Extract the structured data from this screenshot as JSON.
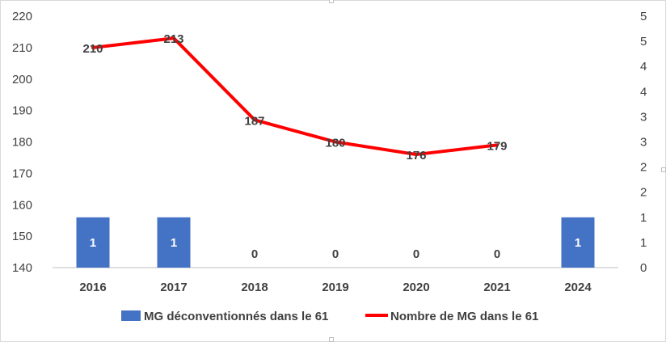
{
  "chart_data": {
    "type": "bar+line",
    "title": "",
    "categories": [
      "2016",
      "2017",
      "2018",
      "2019",
      "2020",
      "2021",
      "2024"
    ],
    "series": [
      {
        "name": "MG déconventionnés dans le 61",
        "type": "bar",
        "axis": "right",
        "color": "#4472C4",
        "values": [
          1,
          1,
          0,
          0,
          0,
          0,
          1
        ],
        "labels": [
          "1",
          "1",
          "0",
          "0",
          "0",
          "0",
          "1"
        ]
      },
      {
        "name": "Nombre de MG dans le 61",
        "type": "line",
        "axis": "left",
        "color": "#FF0000",
        "values": [
          210,
          213,
          187,
          180,
          176,
          179,
          null
        ],
        "labels": [
          "210",
          "213",
          "187",
          "180",
          "176",
          "179",
          ""
        ]
      }
    ],
    "y_left": {
      "range": [
        140,
        220
      ],
      "ticks": [
        "220",
        "210",
        "200",
        "190",
        "180",
        "170",
        "160",
        "150",
        "140"
      ]
    },
    "y_right": {
      "range": [
        0,
        5
      ],
      "ticks": [
        "5",
        "5",
        "4",
        "4",
        "3",
        "3",
        "2",
        "2",
        "1",
        "1",
        "0"
      ]
    },
    "grid": false,
    "legend_position": "bottom"
  }
}
